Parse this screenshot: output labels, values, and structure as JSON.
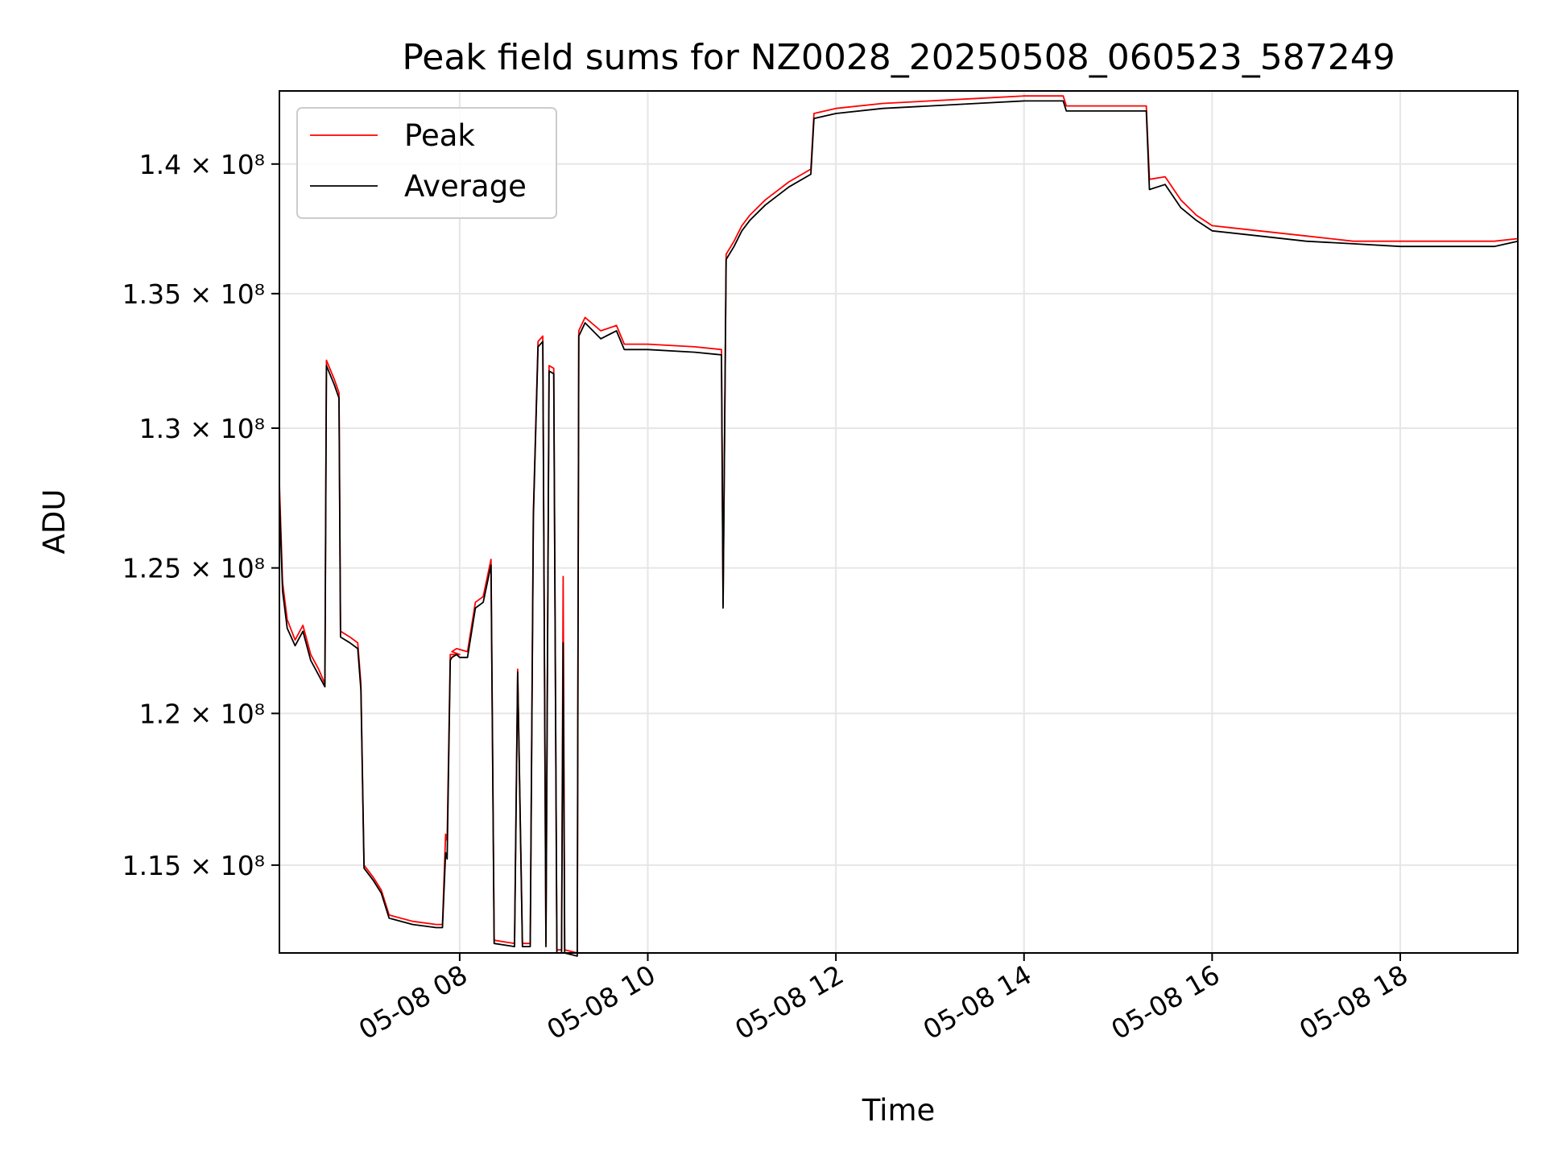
{
  "chart_data": {
    "type": "line",
    "title": "Peak field sums for NZ0028_20250508_060523_587249",
    "xlabel": "Time",
    "ylabel": "ADU",
    "x_range": [
      "2025-05-08 06:05",
      "2025-05-08 19:15"
    ],
    "y_scale": "log",
    "ylim": [
      112200000,
      142900000
    ],
    "grid": true,
    "legend_position": "top-left",
    "x_ticks": [
      {
        "value": "2025-05-08 08:00",
        "label": "05-08 08"
      },
      {
        "value": "2025-05-08 10:00",
        "label": "05-08 10"
      },
      {
        "value": "2025-05-08 12:00",
        "label": "05-08 12"
      },
      {
        "value": "2025-05-08 14:00",
        "label": "05-08 14"
      },
      {
        "value": "2025-05-08 16:00",
        "label": "05-08 16"
      },
      {
        "value": "2025-05-08 18:00",
        "label": "05-08 18"
      }
    ],
    "y_ticks": [
      {
        "value": 115000000,
        "label": "1.15 × 10⁸"
      },
      {
        "value": 120000000,
        "label": "1.2 × 10⁸"
      },
      {
        "value": 125000000,
        "label": "1.25 × 10⁸"
      },
      {
        "value": 130000000,
        "label": "1.3 × 10⁸"
      },
      {
        "value": 135000000,
        "label": "1.35 × 10⁸"
      },
      {
        "value": 140000000,
        "label": "1.4 × 10⁸"
      }
    ],
    "series": [
      {
        "name": "Peak",
        "color": "#ff0000",
        "points": [
          [
            "2025-05-08 06:05",
            128.0
          ],
          [
            "2025-05-08 06:07",
            124.5
          ],
          [
            "2025-05-08 06:10",
            123.2
          ],
          [
            "2025-05-08 06:15",
            122.5
          ],
          [
            "2025-05-08 06:20",
            123.0
          ],
          [
            "2025-05-08 06:25",
            122.0
          ],
          [
            "2025-05-08 06:30",
            121.5
          ],
          [
            "2025-05-08 06:34",
            121.0
          ],
          [
            "2025-05-08 06:35",
            132.5
          ],
          [
            "2025-05-08 06:40",
            131.8
          ],
          [
            "2025-05-08 06:43",
            131.3
          ],
          [
            "2025-05-08 06:44",
            122.8
          ],
          [
            "2025-05-08 06:50",
            122.6
          ],
          [
            "2025-05-08 06:55",
            122.4
          ],
          [
            "2025-05-08 06:57",
            121.0
          ],
          [
            "2025-05-08 06:59",
            115.0
          ],
          [
            "2025-05-08 07:05",
            114.6
          ],
          [
            "2025-05-08 07:10",
            114.2
          ],
          [
            "2025-05-08 07:15",
            113.4
          ],
          [
            "2025-05-08 07:30",
            113.2
          ],
          [
            "2025-05-08 07:45",
            113.1
          ],
          [
            "2025-05-08 07:49",
            113.1
          ],
          [
            "2025-05-08 07:51",
            116.0
          ],
          [
            "2025-05-08 07:52",
            115.8
          ],
          [
            "2025-05-08 07:54",
            122.0
          ],
          [
            "2025-05-08 08:00",
            122.0
          ],
          [
            "2025-05-08 07:55",
            122.1
          ],
          [
            "2025-05-08 07:58",
            122.2
          ],
          [
            "2025-05-08 08:05",
            122.1
          ],
          [
            "2025-05-08 08:10",
            123.8
          ],
          [
            "2025-05-08 08:15",
            124.0
          ],
          [
            "2025-05-08 08:20",
            125.3
          ],
          [
            "2025-05-08 08:22",
            112.6
          ],
          [
            "2025-05-08 08:35",
            112.5
          ],
          [
            "2025-05-08 08:37",
            121.5
          ],
          [
            "2025-05-08 08:40",
            112.5
          ],
          [
            "2025-05-08 08:45",
            112.5
          ],
          [
            "2025-05-08 08:47",
            127.0
          ],
          [
            "2025-05-08 08:50",
            133.2
          ],
          [
            "2025-05-08 08:53",
            133.4
          ],
          [
            "2025-05-08 08:55",
            112.5
          ],
          [
            "2025-05-08 08:57",
            132.3
          ],
          [
            "2025-05-08 09:00",
            132.2
          ],
          [
            "2025-05-08 09:02",
            112.3
          ],
          [
            "2025-05-08 09:05",
            112.3
          ],
          [
            "2025-05-08 09:06",
            124.7
          ],
          [
            "2025-05-08 09:07",
            112.3
          ],
          [
            "2025-05-08 09:15",
            112.2
          ],
          [
            "2025-05-08 09:16",
            133.6
          ],
          [
            "2025-05-08 09:20",
            134.1
          ],
          [
            "2025-05-08 09:30",
            133.6
          ],
          [
            "2025-05-08 09:40",
            133.8
          ],
          [
            "2025-05-08 09:45",
            133.1
          ],
          [
            "2025-05-08 10:00",
            133.1
          ],
          [
            "2025-05-08 10:30",
            133.0
          ],
          [
            "2025-05-08 10:47",
            132.9
          ],
          [
            "2025-05-08 10:48",
            123.7
          ],
          [
            "2025-05-08 10:50",
            136.5
          ],
          [
            "2025-05-08 10:55",
            137.0
          ],
          [
            "2025-05-08 11:00",
            137.6
          ],
          [
            "2025-05-08 11:05",
            138.0
          ],
          [
            "2025-05-08 11:15",
            138.6
          ],
          [
            "2025-05-08 11:30",
            139.3
          ],
          [
            "2025-05-08 11:44",
            139.8
          ],
          [
            "2025-05-08 11:46",
            142.0
          ],
          [
            "2025-05-08 12:00",
            142.2
          ],
          [
            "2025-05-08 12:30",
            142.4
          ],
          [
            "2025-05-08 13:00",
            142.5
          ],
          [
            "2025-05-08 13:30",
            142.6
          ],
          [
            "2025-05-08 14:00",
            142.7
          ],
          [
            "2025-05-08 14:25",
            142.7
          ],
          [
            "2025-05-08 14:27",
            142.3
          ],
          [
            "2025-05-08 15:00",
            142.3
          ],
          [
            "2025-05-08 15:18",
            142.3
          ],
          [
            "2025-05-08 15:20",
            139.4
          ],
          [
            "2025-05-08 15:30",
            139.5
          ],
          [
            "2025-05-08 15:40",
            138.6
          ],
          [
            "2025-05-08 15:50",
            138.0
          ],
          [
            "2025-05-08 16:00",
            137.6
          ],
          [
            "2025-05-08 16:30",
            137.4
          ],
          [
            "2025-05-08 17:00",
            137.2
          ],
          [
            "2025-05-08 17:30",
            137.0
          ],
          [
            "2025-05-08 18:00",
            137.0
          ],
          [
            "2025-05-08 18:30",
            137.0
          ],
          [
            "2025-05-08 19:00",
            137.0
          ],
          [
            "2025-05-08 19:15",
            137.1
          ]
        ]
      },
      {
        "name": "Average",
        "color": "#000000",
        "points": [
          [
            "2025-05-08 06:05",
            127.5
          ],
          [
            "2025-05-08 06:07",
            124.2
          ],
          [
            "2025-05-08 06:10",
            122.9
          ],
          [
            "2025-05-08 06:15",
            122.3
          ],
          [
            "2025-05-08 06:20",
            122.8
          ],
          [
            "2025-05-08 06:25",
            121.8
          ],
          [
            "2025-05-08 06:30",
            121.3
          ],
          [
            "2025-05-08 06:34",
            120.9
          ],
          [
            "2025-05-08 06:35",
            132.3
          ],
          [
            "2025-05-08 06:40",
            131.6
          ],
          [
            "2025-05-08 06:43",
            131.1
          ],
          [
            "2025-05-08 06:44",
            122.6
          ],
          [
            "2025-05-08 06:50",
            122.4
          ],
          [
            "2025-05-08 06:55",
            122.2
          ],
          [
            "2025-05-08 06:57",
            120.8
          ],
          [
            "2025-05-08 06:59",
            114.9
          ],
          [
            "2025-05-08 07:05",
            114.5
          ],
          [
            "2025-05-08 07:10",
            114.1
          ],
          [
            "2025-05-08 07:15",
            113.3
          ],
          [
            "2025-05-08 07:30",
            113.1
          ],
          [
            "2025-05-08 07:45",
            113.0
          ],
          [
            "2025-05-08 07:49",
            113.0
          ],
          [
            "2025-05-08 07:51",
            115.4
          ],
          [
            "2025-05-08 07:52",
            115.2
          ],
          [
            "2025-05-08 07:54",
            121.8
          ],
          [
            "2025-05-08 07:55",
            121.9
          ],
          [
            "2025-05-08 07:58",
            122.0
          ],
          [
            "2025-05-08 08:00",
            121.9
          ],
          [
            "2025-05-08 08:05",
            121.9
          ],
          [
            "2025-05-08 08:10",
            123.6
          ],
          [
            "2025-05-08 08:15",
            123.8
          ],
          [
            "2025-05-08 08:20",
            125.1
          ],
          [
            "2025-05-08 08:22",
            112.5
          ],
          [
            "2025-05-08 08:35",
            112.4
          ],
          [
            "2025-05-08 08:37",
            121.4
          ],
          [
            "2025-05-08 08:40",
            112.4
          ],
          [
            "2025-05-08 08:45",
            112.4
          ],
          [
            "2025-05-08 08:47",
            126.8
          ],
          [
            "2025-05-08 08:50",
            133.0
          ],
          [
            "2025-05-08 08:53",
            133.2
          ],
          [
            "2025-05-08 08:55",
            112.4
          ],
          [
            "2025-05-08 08:57",
            132.1
          ],
          [
            "2025-05-08 09:00",
            132.0
          ],
          [
            "2025-05-08 09:02",
            112.2
          ],
          [
            "2025-05-08 09:05",
            112.2
          ],
          [
            "2025-05-08 09:06",
            122.4
          ],
          [
            "2025-05-08 09:07",
            112.2
          ],
          [
            "2025-05-08 09:15",
            112.1
          ],
          [
            "2025-05-08 09:16",
            133.4
          ],
          [
            "2025-05-08 09:20",
            133.9
          ],
          [
            "2025-05-08 09:30",
            133.3
          ],
          [
            "2025-05-08 09:40",
            133.6
          ],
          [
            "2025-05-08 09:45",
            132.9
          ],
          [
            "2025-05-08 10:00",
            132.9
          ],
          [
            "2025-05-08 10:30",
            132.8
          ],
          [
            "2025-05-08 10:47",
            132.7
          ],
          [
            "2025-05-08 10:48",
            123.6
          ],
          [
            "2025-05-08 10:50",
            136.3
          ],
          [
            "2025-05-08 10:55",
            136.8
          ],
          [
            "2025-05-08 11:00",
            137.4
          ],
          [
            "2025-05-08 11:05",
            137.8
          ],
          [
            "2025-05-08 11:15",
            138.4
          ],
          [
            "2025-05-08 11:30",
            139.1
          ],
          [
            "2025-05-08 11:44",
            139.6
          ],
          [
            "2025-05-08 11:46",
            141.8
          ],
          [
            "2025-05-08 12:00",
            142.0
          ],
          [
            "2025-05-08 12:30",
            142.2
          ],
          [
            "2025-05-08 13:00",
            142.3
          ],
          [
            "2025-05-08 13:30",
            142.4
          ],
          [
            "2025-05-08 14:00",
            142.5
          ],
          [
            "2025-05-08 14:25",
            142.5
          ],
          [
            "2025-05-08 14:27",
            142.1
          ],
          [
            "2025-05-08 15:00",
            142.1
          ],
          [
            "2025-05-08 15:18",
            142.1
          ],
          [
            "2025-05-08 15:20",
            139.0
          ],
          [
            "2025-05-08 15:30",
            139.2
          ],
          [
            "2025-05-08 15:40",
            138.3
          ],
          [
            "2025-05-08 15:50",
            137.8
          ],
          [
            "2025-05-08 16:00",
            137.4
          ],
          [
            "2025-05-08 16:30",
            137.2
          ],
          [
            "2025-05-08 17:00",
            137.0
          ],
          [
            "2025-05-08 17:30",
            136.9
          ],
          [
            "2025-05-08 18:00",
            136.8
          ],
          [
            "2025-05-08 18:30",
            136.8
          ],
          [
            "2025-05-08 19:00",
            136.8
          ],
          [
            "2025-05-08 19:15",
            137.0
          ]
        ]
      }
    ],
    "y_value_unit": "millions of ADU"
  }
}
